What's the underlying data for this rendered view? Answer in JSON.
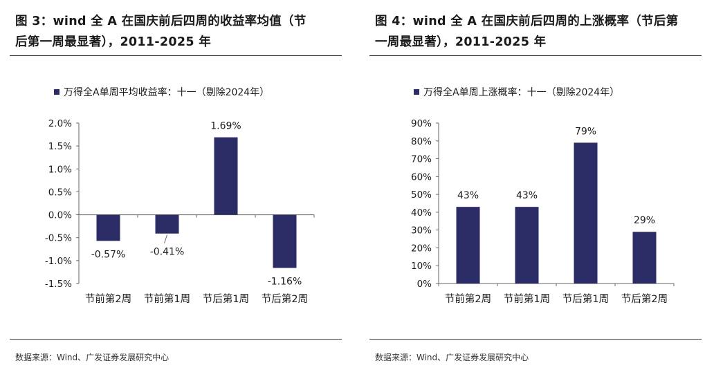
{
  "figures": [
    {
      "title_line1": "图 3：wind 全 A 在国庆前后四周的收益率均值（节",
      "title_line2": "后第一周最显著），2011-2025 年",
      "source": "数据来源：Wind、广发证券发展研究中心"
    },
    {
      "title_line1": "图 4：wind 全 A 在国庆前后四周的上涨概率（节后第",
      "title_line2": "一周最显著），2011-2025 年",
      "source": "数据来源：Wind、广发证券发展研究中心"
    }
  ],
  "colors": {
    "bar": "#2b2b66",
    "axis": "#666666",
    "rule": "#333333"
  },
  "chart_data": [
    {
      "type": "bar",
      "title": "",
      "categories": [
        "节前第2周",
        "节前第1周",
        "节后第1周",
        "节后第2周"
      ],
      "series": [
        {
          "name": "万得全A单周平均收益率：十一（剔除2024年）",
          "values": [
            -0.57,
            -0.41,
            1.69,
            -1.16
          ]
        }
      ],
      "data_labels": [
        "-0.57%",
        "-0.41%",
        "1.69%",
        "-1.16%"
      ],
      "ylim": [
        -1.5,
        2.0
      ],
      "yticks": [
        2.0,
        1.5,
        1.0,
        0.5,
        0.0,
        -0.5,
        -1.0,
        -1.5
      ],
      "ytick_labels": [
        "2.0%",
        "1.5%",
        "1.0%",
        "0.5%",
        "0.0%",
        "-0.5%",
        "-1.0%",
        "-1.5%"
      ],
      "xlabel": "",
      "ylabel": "",
      "grid": false,
      "legend": "top-left"
    },
    {
      "type": "bar",
      "title": "",
      "categories": [
        "节前第2周",
        "节前第1周",
        "节后第1周",
        "节后第2周"
      ],
      "series": [
        {
          "name": "万得全A单周上涨概率：十一（剔除2024年）",
          "values": [
            43,
            43,
            79,
            29
          ]
        }
      ],
      "data_labels": [
        "43%",
        "43%",
        "79%",
        "29%"
      ],
      "ylim": [
        0,
        90
      ],
      "yticks": [
        90,
        80,
        70,
        60,
        50,
        40,
        30,
        20,
        10,
        0
      ],
      "ytick_labels": [
        "90%",
        "80%",
        "70%",
        "60%",
        "50%",
        "40%",
        "30%",
        "20%",
        "10%",
        "0%"
      ],
      "xlabel": "",
      "ylabel": "",
      "grid": false,
      "legend": "top-left"
    }
  ]
}
